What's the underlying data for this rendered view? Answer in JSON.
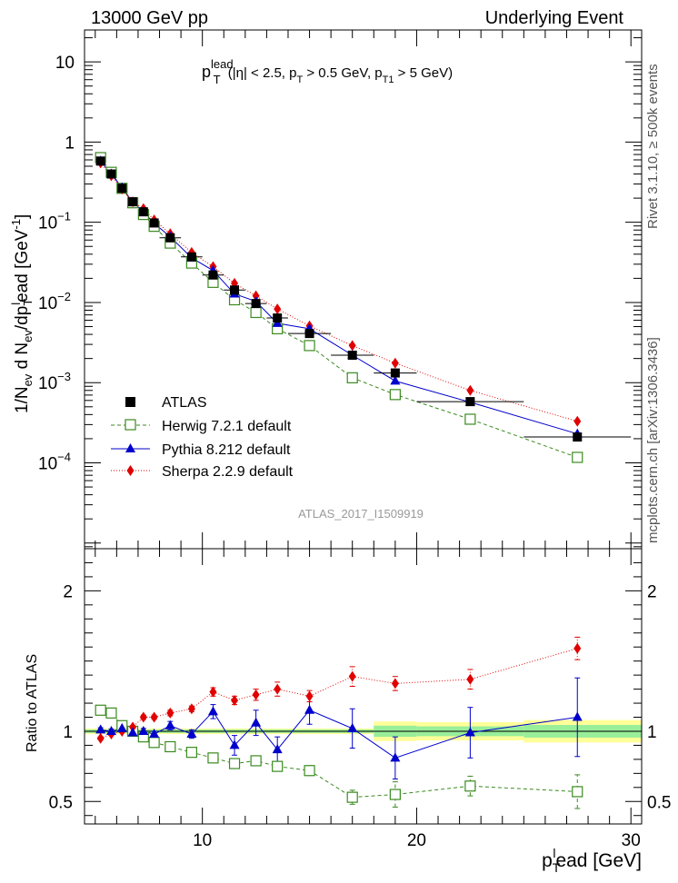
{
  "header": {
    "left": "13000 GeV pp",
    "right": "Underlying Event"
  },
  "side_labels": {
    "top": "Rivet 3.1.10, ≥ 500k events",
    "bottom": "mcplots.cern.ch [arXiv:1306.3436]"
  },
  "plot_title": {
    "main": "p",
    "sup": "lead",
    "sub": "T",
    "cuts_a": " (|η| < 2.5, p",
    "cuts_sub1": "T",
    "cuts_b": " > 0.5 GeV, p",
    "cuts_sub2": "T1",
    "cuts_c": " > 5 GeV)"
  },
  "analysis_id": "ATLAS_2017_I1509919",
  "colors": {
    "atlas": "#000000",
    "herwig": "#3a8a1f",
    "pythia": "#0000cc",
    "sherpa": "#e00000",
    "band_outer": "#ffff99",
    "band_inner": "#99ee99"
  },
  "chart_data": [
    {
      "type": "scatter",
      "ylog": true,
      "xlim": [
        4.5,
        30.5
      ],
      "ylim": [
        8.5e-06,
        25
      ],
      "ylabel": {
        "a": "1/N",
        "a_sub": "ev",
        "b": " d N",
        "b_sub": "ev",
        "c": "/dp",
        "c_sub": "T",
        "c_sup": "l",
        "d": "ead [GeV",
        "d_sup": "-1",
        "e": "]"
      },
      "yticks": [
        {
          "value": 10,
          "label": "10",
          "exp": ""
        },
        {
          "value": 1,
          "label": "1",
          "exp": ""
        },
        {
          "value": 0.1,
          "label": "10",
          "exp": "−1"
        },
        {
          "value": 0.01,
          "label": "10",
          "exp": "−2"
        },
        {
          "value": 0.001,
          "label": "10",
          "exp": "−3"
        },
        {
          "value": 0.0001,
          "label": "10",
          "exp": "−4"
        }
      ],
      "legend_position": "lower-left",
      "series": [
        {
          "name": "ATLAS",
          "style": "data",
          "x": [
            5.25,
            5.75,
            6.25,
            6.75,
            7.25,
            7.75,
            8.5,
            9.5,
            10.5,
            11.5,
            12.5,
            13.5,
            15,
            17,
            19,
            22.5,
            27.5
          ],
          "y": [
            0.58,
            0.4,
            0.265,
            0.18,
            0.135,
            0.098,
            0.064,
            0.037,
            0.022,
            0.0143,
            0.0097,
            0.0064,
            0.0041,
            0.0022,
            0.00132,
            0.00058,
            0.00021
          ],
          "xerr": [
            0.25,
            0.25,
            0.25,
            0.25,
            0.25,
            0.25,
            0.5,
            0.5,
            0.5,
            0.5,
            0.5,
            0.5,
            1,
            1,
            1,
            2.5,
            2.5
          ]
        },
        {
          "name": "Herwig 7.2.1 default",
          "style": "open-square-dashed",
          "x": [
            5.25,
            5.75,
            6.25,
            6.75,
            7.25,
            7.75,
            8.5,
            9.5,
            10.5,
            11.5,
            12.5,
            13.5,
            15,
            17,
            19,
            22.5,
            27.5
          ],
          "y": [
            0.64,
            0.42,
            0.265,
            0.175,
            0.125,
            0.089,
            0.055,
            0.031,
            0.0178,
            0.0108,
            0.0075,
            0.0047,
            0.0029,
            0.00115,
            0.00071,
            0.00035,
            0.000117
          ]
        },
        {
          "name": "Pythia 8.212 default",
          "style": "triangle-solid",
          "x": [
            5.25,
            5.75,
            6.25,
            6.75,
            7.25,
            7.75,
            8.5,
            9.5,
            10.5,
            11.5,
            12.5,
            13.5,
            15,
            17,
            19,
            22.5,
            27.5
          ],
          "y": [
            0.58,
            0.4,
            0.27,
            0.178,
            0.135,
            0.097,
            0.066,
            0.036,
            0.025,
            0.0128,
            0.0103,
            0.0055,
            0.0047,
            0.0022,
            0.00105,
            0.00057,
            0.00023
          ]
        },
        {
          "name": "Sherpa 2.2.9 default",
          "style": "diamond-dotted",
          "x": [
            5.25,
            5.75,
            6.25,
            6.75,
            7.25,
            7.75,
            8.5,
            9.5,
            10.5,
            11.5,
            12.5,
            13.5,
            15,
            17,
            19,
            22.5,
            27.5
          ],
          "y": [
            0.55,
            0.38,
            0.26,
            0.18,
            0.148,
            0.107,
            0.072,
            0.042,
            0.028,
            0.0173,
            0.0121,
            0.0083,
            0.0051,
            0.0029,
            0.00175,
            0.0008,
            0.00033
          ]
        }
      ]
    },
    {
      "type": "scatter",
      "xlim": [
        4.5,
        30.5
      ],
      "ylim": [
        0.34,
        2.3
      ],
      "xlabel": {
        "a": "p",
        "a_sub": "T",
        "a_sup": "l",
        "b": "ead [GeV]"
      },
      "ylabel": "Ratio to ATLAS",
      "xticks": [
        10,
        20,
        30
      ],
      "yticks": [
        0.5,
        1,
        2
      ],
      "band": [
        {
          "x0": 4.5,
          "x1": 18,
          "inner": 0.012,
          "outer": 0.02
        },
        {
          "x0": 18,
          "x1": 20,
          "inner": 0.04,
          "outer": 0.07
        },
        {
          "x0": 20,
          "x1": 25,
          "inner": 0.035,
          "outer": 0.065
        },
        {
          "x0": 25,
          "x1": 30.5,
          "inner": 0.045,
          "outer": 0.08
        }
      ],
      "series": [
        {
          "name": "Herwig 7.2.1 default",
          "x": [
            5.25,
            5.75,
            6.25,
            6.75,
            7.25,
            7.75,
            8.5,
            9.5,
            10.5,
            11.5,
            12.5,
            13.5,
            15,
            17,
            19,
            22.5,
            27.5
          ],
          "y": [
            1.15,
            1.13,
            1.04,
            1.0,
            0.96,
            0.92,
            0.89,
            0.85,
            0.81,
            0.77,
            0.79,
            0.75,
            0.72,
            0.53,
            0.55,
            0.61,
            0.57
          ],
          "err": [
            0.01,
            0.01,
            0.01,
            0.01,
            0.01,
            0.01,
            0.015,
            0.015,
            0.02,
            0.02,
            0.025,
            0.03,
            0.035,
            0.05,
            0.09,
            0.07,
            0.12
          ]
        },
        {
          "name": "Pythia 8.212 default",
          "x": [
            5.25,
            5.75,
            6.25,
            6.75,
            7.25,
            7.75,
            8.5,
            9.5,
            10.5,
            11.5,
            12.5,
            13.5,
            15,
            17,
            19,
            22.5,
            27.5
          ],
          "y": [
            1.01,
            1.0,
            1.02,
            0.99,
            1.0,
            0.98,
            1.04,
            0.98,
            1.14,
            0.9,
            1.06,
            0.87,
            1.15,
            1.02,
            0.81,
            0.99,
            1.1
          ],
          "err": [
            0.015,
            0.015,
            0.015,
            0.015,
            0.02,
            0.02,
            0.03,
            0.03,
            0.05,
            0.07,
            0.09,
            0.09,
            0.1,
            0.14,
            0.15,
            0.18,
            0.28
          ]
        },
        {
          "name": "Sherpa 2.2.9 default",
          "x": [
            5.25,
            5.75,
            6.25,
            6.75,
            7.25,
            7.75,
            8.5,
            9.5,
            10.5,
            11.5,
            12.5,
            13.5,
            15,
            17,
            19,
            22.5,
            27.5
          ],
          "y": [
            0.95,
            0.98,
            1.0,
            1.03,
            1.1,
            1.1,
            1.13,
            1.16,
            1.28,
            1.22,
            1.26,
            1.3,
            1.25,
            1.39,
            1.34,
            1.37,
            1.59
          ],
          "err": [
            0.01,
            0.01,
            0.01,
            0.01,
            0.015,
            0.015,
            0.02,
            0.02,
            0.03,
            0.03,
            0.04,
            0.05,
            0.04,
            0.07,
            0.05,
            0.07,
            0.08
          ]
        }
      ]
    }
  ]
}
